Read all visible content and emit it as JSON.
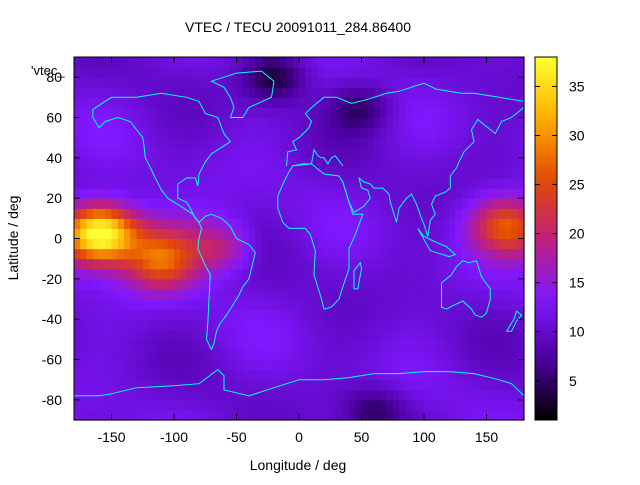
{
  "chart_data": {
    "type": "heatmap",
    "title": "VTEC / TECU 20091011_284.86400",
    "xlabel": "Longitude / deg",
    "ylabel": "Latitude / deg",
    "key_label": "'vtec_",
    "xlim": [
      -180,
      180
    ],
    "ylim": [
      -90,
      90
    ],
    "xticks": [
      -150,
      -100,
      -50,
      0,
      50,
      100,
      150
    ],
    "yticks": [
      -80,
      -60,
      -40,
      -20,
      0,
      20,
      40,
      60,
      80
    ],
    "colorbar": {
      "range": [
        1,
        38
      ],
      "ticks": [
        5,
        10,
        15,
        20,
        25,
        30,
        35
      ]
    },
    "coastline_color": "#00ffff",
    "palette": [
      "#000000",
      "#4c00a0",
      "#8018ff",
      "#c0207a",
      "#e44a00",
      "#ffb000",
      "#ffff30"
    ],
    "grid_step_deg": {
      "lon": 5,
      "lat": 5
    },
    "features": {
      "background": 11,
      "anomalies": [
        {
          "lon": -160,
          "lat": 3,
          "peak": 37
        },
        {
          "lon": -110,
          "lat": -12,
          "peak": 24
        },
        {
          "lon": 165,
          "lat": 7,
          "peak": 25
        },
        {
          "lon": -60,
          "lat": -5,
          "peak": 17
        },
        {
          "lon": -20,
          "lat": 80,
          "peak": 3
        },
        {
          "lon": 50,
          "lat": 65,
          "peak": 5
        },
        {
          "lon": 60,
          "lat": -85,
          "peak": 5
        }
      ]
    }
  }
}
